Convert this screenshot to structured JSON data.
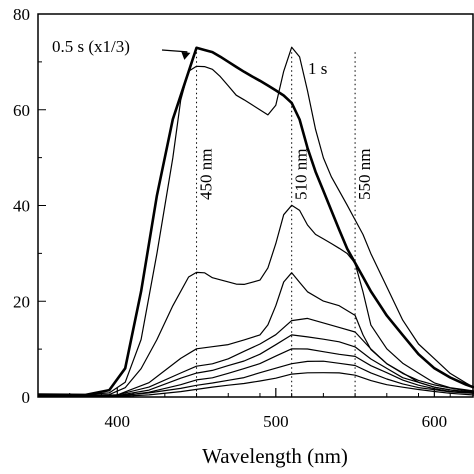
{
  "chart_data": {
    "type": "line",
    "title": "",
    "xlabel": "Wavelength (nm)",
    "ylabel": "",
    "xlim": [
      350,
      625
    ],
    "ylim": [
      0,
      80
    ],
    "x_ticks": [
      400,
      500,
      600
    ],
    "y_ticks": [
      0,
      20,
      40,
      60,
      80
    ],
    "grid": false,
    "legend": "none",
    "series": [
      {
        "name": "0.5 s (x1/3)",
        "emphasis": "bold",
        "x": [
          350,
          380,
          395,
          405,
          415,
          425,
          435,
          445,
          450,
          455,
          460,
          465,
          470,
          475,
          480,
          485,
          490,
          495,
          500,
          505,
          510,
          515,
          520,
          525,
          530,
          535,
          540,
          545,
          550,
          555,
          560,
          570,
          580,
          590,
          600,
          610,
          620,
          625
        ],
        "y": [
          0.5,
          0.5,
          1.5,
          6,
          22,
          42,
          58,
          68,
          73,
          72.5,
          72,
          71,
          70,
          69,
          68,
          67,
          66,
          65,
          64,
          63,
          61.5,
          58,
          52,
          47,
          43,
          39,
          35,
          31,
          28,
          25,
          22,
          17,
          13,
          9,
          6,
          4,
          2.5,
          2
        ]
      },
      {
        "name": "1 s",
        "x": [
          350,
          380,
          395,
          405,
          415,
          425,
          435,
          440,
          445,
          450,
          455,
          460,
          465,
          470,
          475,
          480,
          485,
          490,
          495,
          500,
          505,
          510,
          515,
          520,
          525,
          530,
          535,
          540,
          545,
          550,
          555,
          560,
          570,
          580,
          590,
          600,
          610,
          620,
          625
        ],
        "y": [
          0.5,
          0.5,
          0.8,
          3,
          12,
          30,
          50,
          62,
          68,
          69,
          69,
          68.5,
          67,
          65,
          63,
          62,
          61,
          60,
          59,
          61,
          68,
          73,
          71,
          64,
          56,
          50,
          46,
          43,
          40,
          37,
          34,
          30,
          23,
          16,
          11,
          8,
          5,
          3,
          2
        ]
      },
      {
        "name": "",
        "x": [
          350,
          380,
          395,
          405,
          415,
          425,
          435,
          445,
          450,
          455,
          460,
          465,
          470,
          475,
          480,
          485,
          490,
          495,
          500,
          505,
          510,
          515,
          520,
          525,
          530,
          535,
          540,
          545,
          550,
          555,
          560,
          570,
          580,
          590,
          600,
          610,
          620,
          625
        ],
        "y": [
          0.3,
          0.3,
          0.5,
          2,
          6,
          12,
          19,
          25,
          26,
          26,
          25,
          24.5,
          24,
          23.5,
          23.5,
          24,
          24.5,
          27,
          32,
          38,
          40,
          39,
          36,
          34,
          33,
          32,
          31,
          30,
          28,
          22,
          15,
          10,
          7,
          5,
          3,
          2,
          1.5,
          1.2
        ]
      },
      {
        "name": "",
        "x": [
          350,
          380,
          400,
          420,
          440,
          450,
          460,
          470,
          480,
          490,
          495,
          500,
          505,
          510,
          515,
          520,
          530,
          540,
          550,
          555,
          560,
          570,
          580,
          590,
          600,
          610,
          625
        ],
        "y": [
          0.2,
          0.2,
          0.5,
          3,
          8,
          10,
          10.5,
          11,
          12,
          13,
          15,
          19,
          24,
          26,
          24,
          22,
          20,
          19,
          17,
          13,
          10,
          7,
          5,
          3,
          2,
          1.5,
          1
        ]
      },
      {
        "name": "",
        "x": [
          350,
          380,
          400,
          420,
          440,
          450,
          460,
          470,
          480,
          490,
          500,
          510,
          520,
          530,
          540,
          550,
          560,
          570,
          580,
          590,
          600,
          610,
          625
        ],
        "y": [
          0.2,
          0.2,
          0.4,
          2,
          5,
          6.5,
          7,
          8,
          9.5,
          11,
          13,
          16,
          16.5,
          15.5,
          14.5,
          13.5,
          10,
          7,
          5,
          3.5,
          2.5,
          1.8,
          1
        ]
      },
      {
        "name": "",
        "x": [
          350,
          380,
          400,
          420,
          440,
          450,
          460,
          470,
          480,
          490,
          500,
          510,
          520,
          530,
          540,
          550,
          560,
          570,
          580,
          590,
          600,
          610,
          625
        ],
        "y": [
          0.2,
          0.2,
          0.3,
          1.5,
          4,
          5,
          5.5,
          6.5,
          7.5,
          9,
          11,
          13,
          12.5,
          12,
          11.5,
          10.5,
          8,
          6,
          4,
          3,
          2,
          1.5,
          1
        ]
      },
      {
        "name": "",
        "x": [
          350,
          380,
          400,
          420,
          440,
          450,
          460,
          470,
          480,
          490,
          500,
          510,
          520,
          530,
          540,
          550,
          560,
          570,
          580,
          590,
          600,
          610,
          625
        ],
        "y": [
          0.1,
          0.1,
          0.2,
          1,
          2.5,
          3.5,
          4,
          5,
          6,
          7,
          8.5,
          10,
          10,
          9.5,
          9,
          8.5,
          6.5,
          5,
          3.5,
          2.5,
          1.8,
          1.2,
          0.8
        ]
      },
      {
        "name": "",
        "x": [
          350,
          380,
          400,
          420,
          440,
          450,
          460,
          470,
          480,
          490,
          500,
          510,
          520,
          530,
          540,
          550,
          560,
          570,
          580,
          590,
          600,
          610,
          625
        ],
        "y": [
          0.1,
          0.1,
          0.2,
          0.8,
          1.8,
          2.5,
          3,
          3.5,
          4,
          5,
          6,
          7,
          7.5,
          7.5,
          7,
          6.5,
          5,
          3.8,
          2.8,
          2,
          1.5,
          1,
          0.7
        ]
      },
      {
        "name": "",
        "x": [
          350,
          380,
          400,
          420,
          440,
          450,
          460,
          470,
          480,
          490,
          500,
          510,
          520,
          530,
          540,
          550,
          560,
          570,
          580,
          590,
          600,
          610,
          625
        ],
        "y": [
          0.1,
          0.1,
          0.1,
          0.5,
          1.2,
          1.6,
          2,
          2.4,
          2.8,
          3.4,
          4,
          4.8,
          5,
          5,
          5,
          4.6,
          3.5,
          2.6,
          2,
          1.5,
          1.1,
          0.8,
          0.5
        ]
      }
    ],
    "reference_lines": [
      {
        "x": 450,
        "label": "450 nm"
      },
      {
        "x": 510,
        "label": "510 nm"
      },
      {
        "x": 550,
        "label": "550 nm"
      }
    ]
  }
}
